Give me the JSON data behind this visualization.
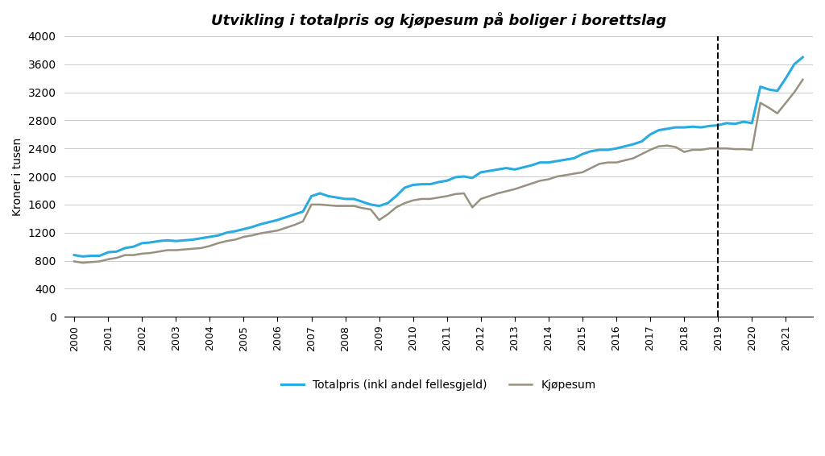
{
  "title": "Utvikling i totalpris og kjøpesum på boliger i borettslag",
  "ylabel": "Kroner i tusen",
  "ylim": [
    0,
    4000
  ],
  "yticks": [
    0,
    400,
    800,
    1200,
    1600,
    2000,
    2400,
    2800,
    3200,
    3600,
    4000
  ],
  "dashed_line_x": 2019.0,
  "legend_labels": [
    "Totalpris (inkl andel fellesgjeld)",
    "Kjøpesum"
  ],
  "totalpris_color": "#29ABE2",
  "kjopesum_color": "#999180",
  "background_color": "#ffffff",
  "totalpris_x": [
    2000.0,
    2000.25,
    2000.5,
    2000.75,
    2001.0,
    2001.25,
    2001.5,
    2001.75,
    2002.0,
    2002.25,
    2002.5,
    2002.75,
    2003.0,
    2003.25,
    2003.5,
    2003.75,
    2004.0,
    2004.25,
    2004.5,
    2004.75,
    2005.0,
    2005.25,
    2005.5,
    2005.75,
    2006.0,
    2006.25,
    2006.5,
    2006.75,
    2007.0,
    2007.25,
    2007.5,
    2007.75,
    2008.0,
    2008.25,
    2008.5,
    2008.75,
    2009.0,
    2009.25,
    2009.5,
    2009.75,
    2010.0,
    2010.25,
    2010.5,
    2010.75,
    2011.0,
    2011.25,
    2011.5,
    2011.75,
    2012.0,
    2012.25,
    2012.5,
    2012.75,
    2013.0,
    2013.25,
    2013.5,
    2013.75,
    2014.0,
    2014.25,
    2014.5,
    2014.75,
    2015.0,
    2015.25,
    2015.5,
    2015.75,
    2016.0,
    2016.25,
    2016.5,
    2016.75,
    2017.0,
    2017.25,
    2017.5,
    2017.75,
    2018.0,
    2018.25,
    2018.5,
    2018.75,
    2019.0,
    2019.25,
    2019.5,
    2019.75,
    2020.0,
    2020.25,
    2020.5,
    2020.75,
    2021.0,
    2021.25,
    2021.5
  ],
  "totalpris_y": [
    880,
    860,
    870,
    870,
    920,
    930,
    980,
    1000,
    1050,
    1060,
    1080,
    1090,
    1080,
    1090,
    1100,
    1120,
    1140,
    1160,
    1200,
    1220,
    1250,
    1280,
    1320,
    1350,
    1380,
    1420,
    1460,
    1500,
    1720,
    1760,
    1720,
    1700,
    1680,
    1680,
    1640,
    1600,
    1580,
    1620,
    1720,
    1840,
    1880,
    1890,
    1890,
    1920,
    1940,
    1990,
    2000,
    1980,
    2060,
    2080,
    2100,
    2120,
    2100,
    2130,
    2160,
    2200,
    2200,
    2220,
    2240,
    2260,
    2320,
    2360,
    2380,
    2380,
    2400,
    2430,
    2460,
    2500,
    2600,
    2660,
    2680,
    2700,
    2700,
    2710,
    2700,
    2720,
    2730,
    2760,
    2750,
    2780,
    2760,
    3280,
    3240,
    3220,
    3400,
    3600,
    3700
  ],
  "kjopesum_x": [
    2000.0,
    2000.25,
    2000.5,
    2000.75,
    2001.0,
    2001.25,
    2001.5,
    2001.75,
    2002.0,
    2002.25,
    2002.5,
    2002.75,
    2003.0,
    2003.25,
    2003.5,
    2003.75,
    2004.0,
    2004.25,
    2004.5,
    2004.75,
    2005.0,
    2005.25,
    2005.5,
    2005.75,
    2006.0,
    2006.25,
    2006.5,
    2006.75,
    2007.0,
    2007.25,
    2007.5,
    2007.75,
    2008.0,
    2008.25,
    2008.5,
    2008.75,
    2009.0,
    2009.25,
    2009.5,
    2009.75,
    2010.0,
    2010.25,
    2010.5,
    2010.75,
    2011.0,
    2011.25,
    2011.5,
    2011.75,
    2012.0,
    2012.25,
    2012.5,
    2012.75,
    2013.0,
    2013.25,
    2013.5,
    2013.75,
    2014.0,
    2014.25,
    2014.5,
    2014.75,
    2015.0,
    2015.25,
    2015.5,
    2015.75,
    2016.0,
    2016.25,
    2016.5,
    2016.75,
    2017.0,
    2017.25,
    2017.5,
    2017.75,
    2018.0,
    2018.25,
    2018.5,
    2018.75,
    2019.0,
    2019.25,
    2019.5,
    2019.75,
    2020.0,
    2020.25,
    2020.5,
    2020.75,
    2021.0,
    2021.25,
    2021.5
  ],
  "kjopesum_y": [
    790,
    770,
    780,
    790,
    820,
    840,
    880,
    880,
    900,
    910,
    930,
    950,
    950,
    960,
    970,
    980,
    1010,
    1050,
    1080,
    1100,
    1140,
    1160,
    1190,
    1210,
    1230,
    1270,
    1310,
    1360,
    1600,
    1600,
    1590,
    1580,
    1580,
    1580,
    1550,
    1530,
    1380,
    1460,
    1560,
    1620,
    1660,
    1680,
    1680,
    1700,
    1720,
    1750,
    1760,
    1560,
    1680,
    1720,
    1760,
    1790,
    1820,
    1860,
    1900,
    1940,
    1960,
    2000,
    2020,
    2040,
    2060,
    2120,
    2180,
    2200,
    2200,
    2230,
    2260,
    2320,
    2380,
    2430,
    2440,
    2420,
    2350,
    2380,
    2380,
    2400,
    2400,
    2400,
    2390,
    2390,
    2380,
    3050,
    2980,
    2900,
    3050,
    3200,
    3380
  ]
}
